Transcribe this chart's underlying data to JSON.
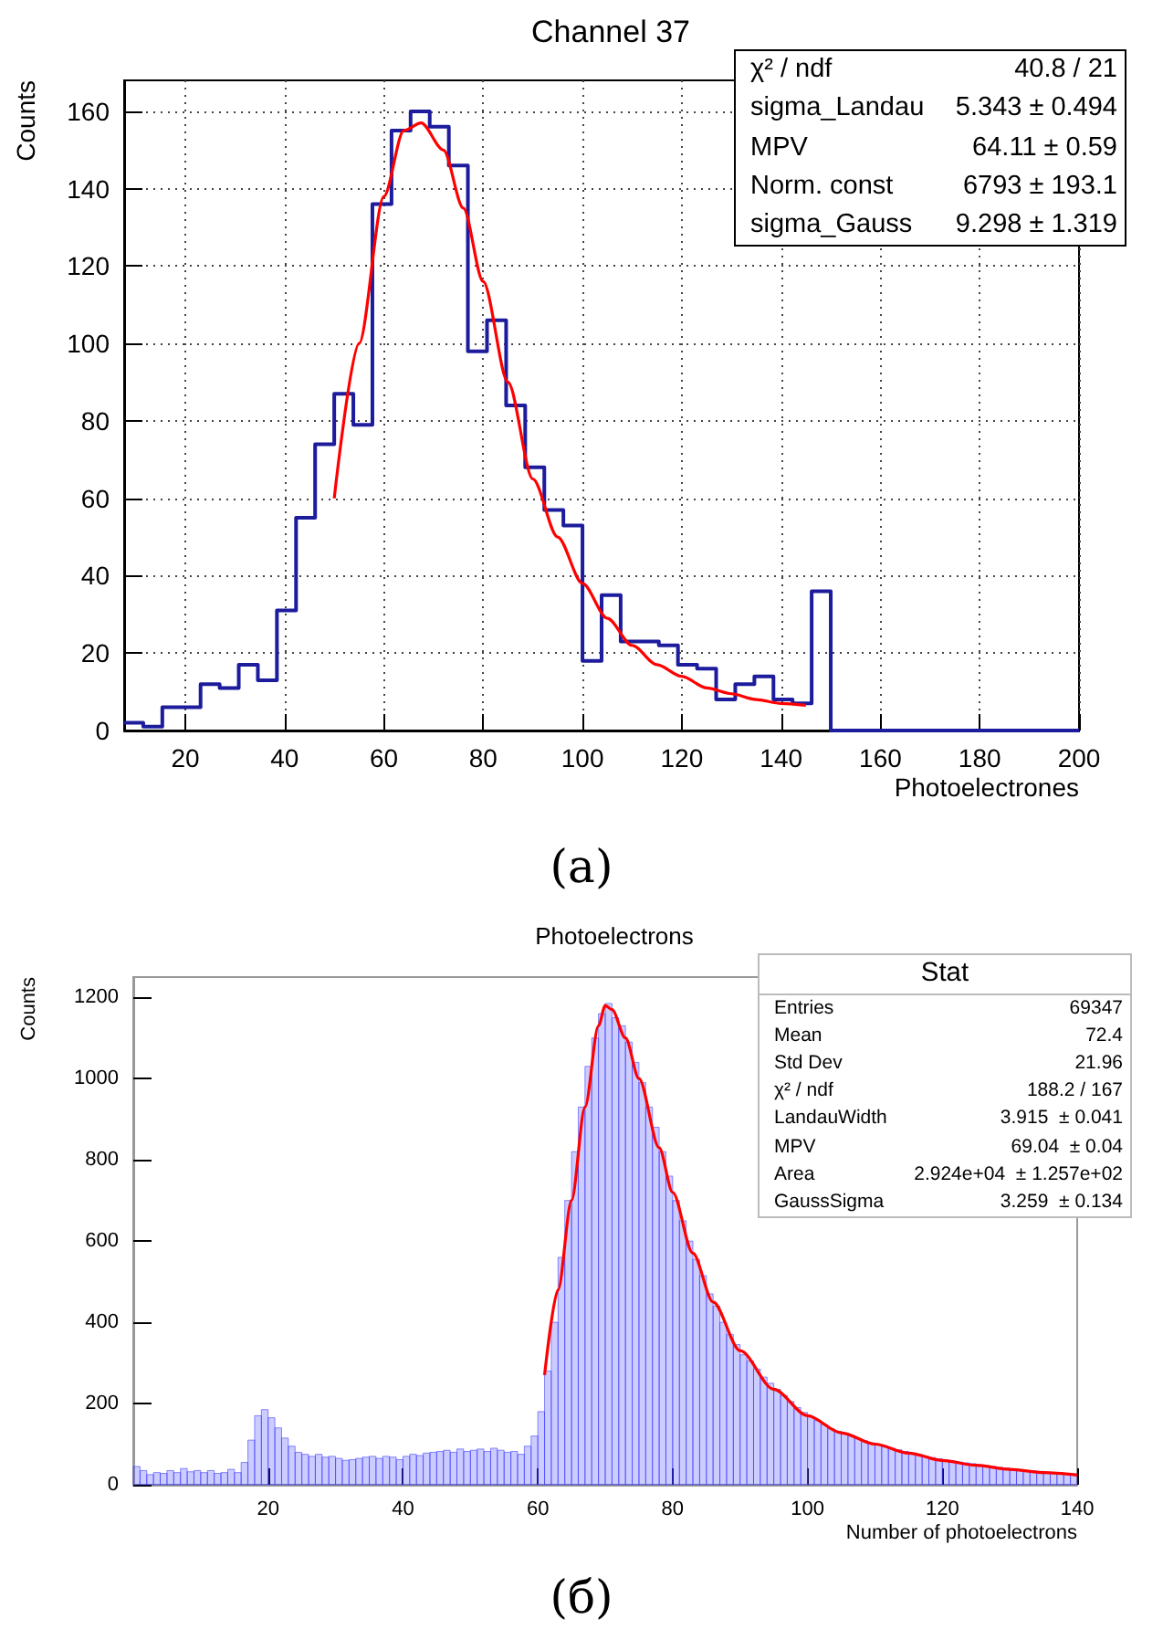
{
  "chart_data": [
    {
      "type": "step",
      "title": "Channel 37",
      "xlabel": "Photoelectrones",
      "ylabel": "Counts",
      "xlim": [
        7.69,
        200
      ],
      "ylim": [
        0,
        168
      ],
      "xticks": [
        20,
        40,
        60,
        80,
        100,
        120,
        140,
        160,
        180,
        200
      ],
      "yticks": [
        0,
        20,
        40,
        60,
        80,
        100,
        120,
        140,
        160
      ],
      "grid": true,
      "annotations": [
        "(a)",
        "χ² / ndf",
        "40.8 / 21",
        "sigma_Landau",
        "5.343 ± 0.494",
        "MPV",
        "64.11 ± 0.59",
        "Norm. const",
        "6793 ± 193.1",
        "sigma_Gauss",
        "9.298 ± 1.319"
      ],
      "series": [
        {
          "color": "#1c1c9c",
          "x": [
            7.69,
            11.54,
            15.38,
            19.23,
            23.08,
            26.92,
            30.77,
            34.62,
            38.46,
            42.31,
            46.15,
            50,
            53.85,
            57.69,
            61.54,
            65.38,
            69.23,
            73.08,
            76.92,
            80.77,
            84.62,
            88.46,
            92.31,
            96.15,
            100,
            103.85,
            107.69,
            111.54,
            115.38,
            119.23,
            123.08,
            126.92,
            130.77,
            134.62,
            138.46,
            142.31,
            146.15,
            150,
            153.85,
            157.69,
            161.54,
            165.38,
            169.23,
            173.08,
            176.92,
            180.77,
            184.62,
            188.46,
            192.31,
            196.15,
            200
          ],
          "values": [
            2,
            1,
            6,
            6,
            12,
            11,
            17,
            13,
            31,
            55,
            74,
            87,
            79,
            136,
            155,
            160,
            156,
            146,
            98,
            106,
            84,
            68,
            57,
            53,
            18,
            35,
            23,
            23,
            22,
            17,
            16,
            8,
            12,
            14,
            8,
            7,
            36,
            0,
            0,
            0,
            0,
            0,
            0,
            0,
            0,
            0,
            0,
            0,
            0,
            0,
            0
          ]
        },
        {
          "type": "line",
          "color": "#ff0000",
          "x": [
            50,
            55,
            60,
            64,
            67.5,
            72,
            76,
            80,
            85,
            90,
            95,
            100,
            105,
            110,
            115,
            120,
            125,
            130,
            135,
            140,
            145
          ],
          "values": [
            60,
            100,
            138,
            155,
            157,
            150,
            135,
            116,
            90,
            65,
            50,
            38,
            29,
            22,
            17,
            14,
            11,
            9.5,
            8,
            7,
            6.5
          ]
        }
      ]
    },
    {
      "type": "histogram",
      "title": "Photoelectrons",
      "xlabel": "Number of photoelectrons",
      "ylabel": "Counts",
      "xlim": [
        0,
        140
      ],
      "ylim": [
        0,
        1250
      ],
      "xticks": [
        20,
        40,
        60,
        80,
        100,
        120,
        140
      ],
      "yticks": [
        0,
        200,
        400,
        600,
        800,
        1000,
        1200
      ],
      "annotations": [
        "(б)",
        "Stat",
        "Entries",
        "69347",
        "Mean",
        "72.4",
        "Std Dev",
        "21.96",
        "χ² / ndf",
        "188.2 / 167",
        "LandauWidth",
        "3.915  ± 0.041",
        "MPV",
        "69.04  ± 0.04",
        "Area",
        "2.924e+04  ± 1.257e+02",
        "GaussSigma",
        "3.259  ± 0.134"
      ],
      "bins": [
        0,
        1,
        2,
        3,
        4,
        5,
        6,
        7,
        8,
        9,
        10,
        11,
        12,
        13,
        14,
        15,
        16,
        17,
        18,
        19,
        20,
        21,
        22,
        23,
        24,
        25,
        26,
        27,
        28,
        29,
        30,
        31,
        32,
        33,
        34,
        35,
        36,
        37,
        38,
        39,
        40,
        41,
        42,
        43,
        44,
        45,
        46,
        47,
        48,
        49,
        50,
        51,
        52,
        53,
        54,
        55,
        56,
        57,
        58,
        59,
        60,
        61,
        62,
        63,
        64,
        65,
        66,
        67,
        68,
        69,
        70,
        71,
        72,
        73,
        74,
        75,
        76,
        77,
        78,
        79,
        80,
        81,
        82,
        83,
        84,
        85,
        86,
        87,
        88,
        89,
        90,
        91,
        92,
        93,
        94,
        95,
        96,
        97,
        98,
        99,
        100,
        101,
        102,
        103,
        104,
        105,
        106,
        107,
        108,
        109,
        110,
        111,
        112,
        113,
        114,
        115,
        116,
        117,
        118,
        119,
        120,
        121,
        122,
        123,
        124,
        125,
        126,
        127,
        128,
        129,
        130,
        131,
        132,
        133,
        134,
        135,
        136,
        137,
        138,
        139,
        140
      ],
      "series": [
        {
          "color": "#3333ff",
          "values": [
            45,
            35,
            25,
            30,
            28,
            35,
            30,
            40,
            32,
            35,
            30,
            35,
            28,
            30,
            38,
            30,
            55,
            110,
            170,
            185,
            165,
            140,
            115,
            95,
            80,
            75,
            70,
            75,
            68,
            70,
            65,
            60,
            62,
            65,
            68,
            70,
            65,
            70,
            68,
            62,
            70,
            75,
            72,
            78,
            80,
            82,
            85,
            80,
            88,
            82,
            85,
            88,
            82,
            90,
            85,
            80,
            82,
            75,
            95,
            120,
            180,
            280,
            400,
            560,
            700,
            820,
            930,
            1030,
            1100,
            1160,
            1185,
            1150,
            1130,
            1090,
            1040,
            990,
            930,
            880,
            820,
            760,
            700,
            650,
            600,
            555,
            515,
            470,
            440,
            400,
            370,
            345,
            320,
            305,
            285,
            265,
            250,
            235,
            220,
            205,
            190,
            178,
            168,
            158,
            148,
            138,
            132,
            125,
            120,
            114,
            108,
            103,
            98,
            94,
            90,
            86,
            82,
            78,
            74,
            70,
            67,
            64,
            61,
            58,
            56,
            54,
            52,
            49,
            47,
            45,
            43,
            41,
            39,
            37,
            35,
            34,
            33,
            31,
            30,
            29,
            28,
            27
          ]
        },
        {
          "type": "line",
          "color": "#ff0000",
          "x": [
            61,
            63,
            65,
            67,
            69,
            70,
            71,
            73,
            75,
            78,
            80,
            83,
            86,
            90,
            95,
            100,
            105,
            110,
            115,
            120,
            125,
            130,
            135,
            140
          ],
          "values": [
            270,
            480,
            700,
            930,
            1130,
            1180,
            1170,
            1100,
            1000,
            830,
            720,
            570,
            450,
            330,
            235,
            170,
            128,
            100,
            78,
            60,
            48,
            38,
            30,
            24
          ]
        }
      ]
    }
  ]
}
